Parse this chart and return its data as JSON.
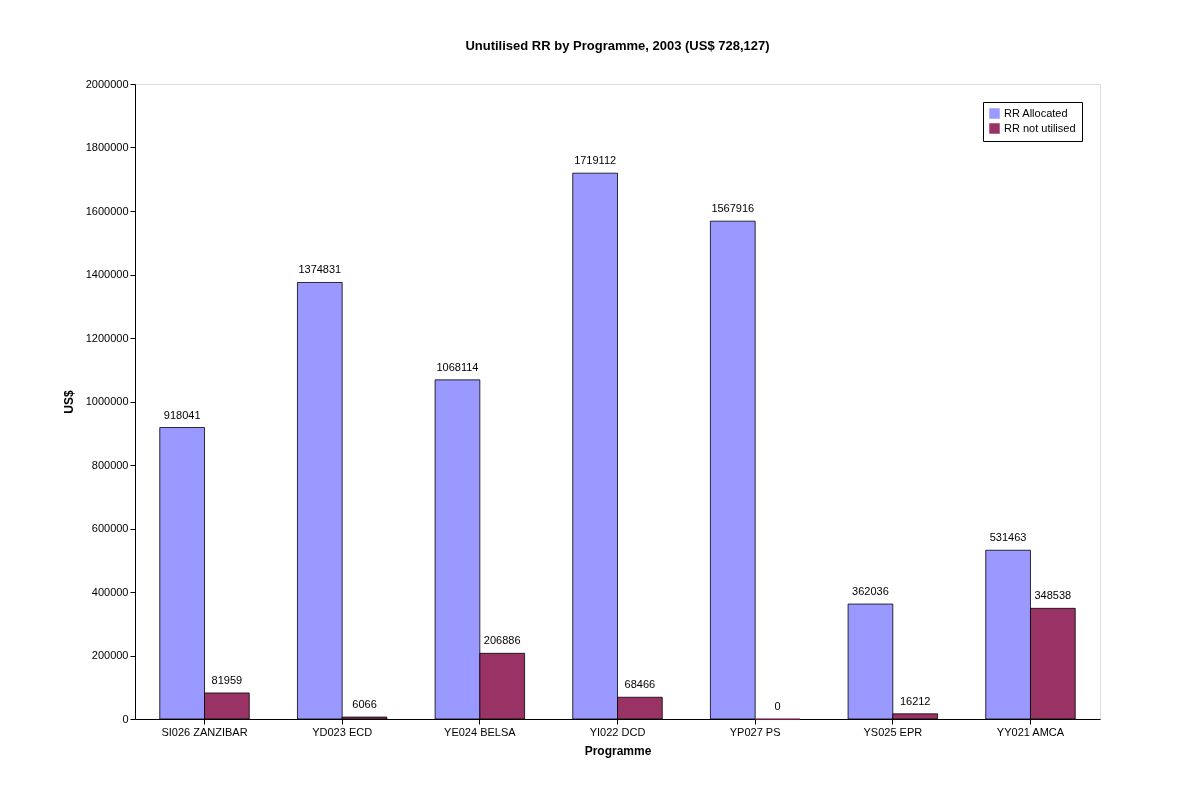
{
  "chart_data": {
    "type": "bar",
    "title": "Unutilised RR by Programme, 2003 (US$ 728,127)",
    "xlabel": "Programme",
    "ylabel": "US$",
    "categories": [
      "SI026 ZANZIBAR",
      "YD023 ECD",
      "YE024 BELSA",
      "YI022 DCD",
      "YP027 PS",
      "YS025 EPR",
      "YY021 AMCA"
    ],
    "series": [
      {
        "name": "RR Allocated",
        "color": "#9999ff",
        "values": [
          918041,
          1374831,
          1068114,
          1719112,
          1567916,
          362036,
          531463
        ]
      },
      {
        "name": "RR not utilised",
        "color": "#993366",
        "values": [
          81959,
          6066,
          206886,
          68466,
          0,
          16212,
          348538
        ]
      }
    ],
    "ylim": [
      0,
      2000000
    ],
    "yticks": [
      0,
      200000,
      400000,
      600000,
      800000,
      1000000,
      1200000,
      1400000,
      1600000,
      1800000,
      2000000
    ],
    "data_labels": true,
    "grid": false,
    "legend": "top right"
  }
}
